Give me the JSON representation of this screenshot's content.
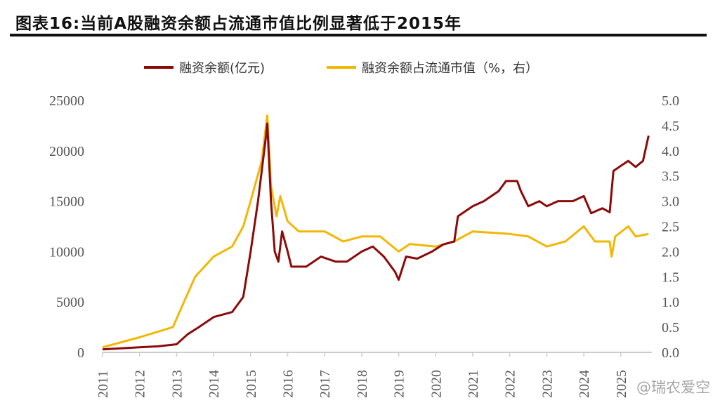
{
  "title": "图表16:当前A股融资余额占流通市值比例显著低于2015年",
  "watermark": "@瑞农爱空",
  "chart_data": {
    "type": "line",
    "title": "图表16:当前A股融资余额占流通市值比例显著低于2015年",
    "legend_position": "top",
    "grid": false,
    "x_ticks": [
      "2011",
      "2012",
      "2013",
      "2014",
      "2015",
      "2016",
      "2017",
      "2018",
      "2019",
      "2020",
      "2021",
      "2022",
      "2023",
      "2024",
      "2025"
    ],
    "xlim": [
      2011,
      2025.85
    ],
    "y_left": {
      "lim": [
        0,
        25000
      ],
      "ticks": [
        "0",
        "5000",
        "10000",
        "15000",
        "20000",
        "25000"
      ]
    },
    "y_right": {
      "lim": [
        0,
        5
      ],
      "ticks": [
        "0.0",
        "0.5",
        "1.0",
        "1.5",
        "2.0",
        "2.5",
        "3.0",
        "3.5",
        "4.0",
        "4.5",
        "5.0"
      ]
    },
    "series": [
      {
        "name": "融资余额(亿元)",
        "axis": "left",
        "color": "#8B0A0A",
        "points": [
          [
            2011.0,
            300
          ],
          [
            2011.5,
            400
          ],
          [
            2012.0,
            500
          ],
          [
            2012.5,
            600
          ],
          [
            2013.0,
            800
          ],
          [
            2013.3,
            1800
          ],
          [
            2013.6,
            2500
          ],
          [
            2014.0,
            3500
          ],
          [
            2014.5,
            4000
          ],
          [
            2014.8,
            5500
          ],
          [
            2015.0,
            10000
          ],
          [
            2015.2,
            15000
          ],
          [
            2015.4,
            21000
          ],
          [
            2015.45,
            22700
          ],
          [
            2015.55,
            15000
          ],
          [
            2015.65,
            10000
          ],
          [
            2015.75,
            9000
          ],
          [
            2015.85,
            12000
          ],
          [
            2016.0,
            10000
          ],
          [
            2016.1,
            8500
          ],
          [
            2016.5,
            8500
          ],
          [
            2016.9,
            9500
          ],
          [
            2017.3,
            9000
          ],
          [
            2017.6,
            9000
          ],
          [
            2018.0,
            10000
          ],
          [
            2018.3,
            10500
          ],
          [
            2018.6,
            9500
          ],
          [
            2018.9,
            8000
          ],
          [
            2019.0,
            7200
          ],
          [
            2019.2,
            9500
          ],
          [
            2019.5,
            9300
          ],
          [
            2019.9,
            10000
          ],
          [
            2020.2,
            10700
          ],
          [
            2020.5,
            11000
          ],
          [
            2020.6,
            13500
          ],
          [
            2021.0,
            14500
          ],
          [
            2021.3,
            15000
          ],
          [
            2021.7,
            16000
          ],
          [
            2021.9,
            17000
          ],
          [
            2022.2,
            17000
          ],
          [
            2022.3,
            16000
          ],
          [
            2022.5,
            14500
          ],
          [
            2022.8,
            15000
          ],
          [
            2023.0,
            14500
          ],
          [
            2023.3,
            15000
          ],
          [
            2023.7,
            15000
          ],
          [
            2024.0,
            15500
          ],
          [
            2024.2,
            13800
          ],
          [
            2024.5,
            14300
          ],
          [
            2024.7,
            13900
          ],
          [
            2024.8,
            18000
          ],
          [
            2025.0,
            18500
          ],
          [
            2025.2,
            19000
          ],
          [
            2025.4,
            18400
          ],
          [
            2025.6,
            19000
          ],
          [
            2025.75,
            21500
          ]
        ]
      },
      {
        "name": "融资余额占流通市值（%，右）",
        "axis": "right",
        "color": "#F2B705",
        "points": [
          [
            2011.0,
            0.1
          ],
          [
            2012.0,
            0.3
          ],
          [
            2012.9,
            0.5
          ],
          [
            2013.2,
            1.0
          ],
          [
            2013.5,
            1.5
          ],
          [
            2014.0,
            1.9
          ],
          [
            2014.5,
            2.1
          ],
          [
            2014.8,
            2.5
          ],
          [
            2015.0,
            3.0
          ],
          [
            2015.3,
            3.8
          ],
          [
            2015.45,
            4.7
          ],
          [
            2015.55,
            3.3
          ],
          [
            2015.7,
            2.7
          ],
          [
            2015.8,
            3.1
          ],
          [
            2016.0,
            2.6
          ],
          [
            2016.3,
            2.4
          ],
          [
            2017.0,
            2.4
          ],
          [
            2017.5,
            2.2
          ],
          [
            2018.0,
            2.3
          ],
          [
            2018.5,
            2.3
          ],
          [
            2019.0,
            2.0
          ],
          [
            2019.3,
            2.15
          ],
          [
            2020.0,
            2.1
          ],
          [
            2020.5,
            2.2
          ],
          [
            2021.0,
            2.4
          ],
          [
            2022.0,
            2.35
          ],
          [
            2022.5,
            2.3
          ],
          [
            2023.0,
            2.1
          ],
          [
            2023.5,
            2.2
          ],
          [
            2024.0,
            2.5
          ],
          [
            2024.3,
            2.2
          ],
          [
            2024.7,
            2.2
          ],
          [
            2024.75,
            1.9
          ],
          [
            2024.85,
            2.3
          ],
          [
            2025.2,
            2.5
          ],
          [
            2025.4,
            2.3
          ],
          [
            2025.75,
            2.35
          ]
        ]
      }
    ]
  }
}
